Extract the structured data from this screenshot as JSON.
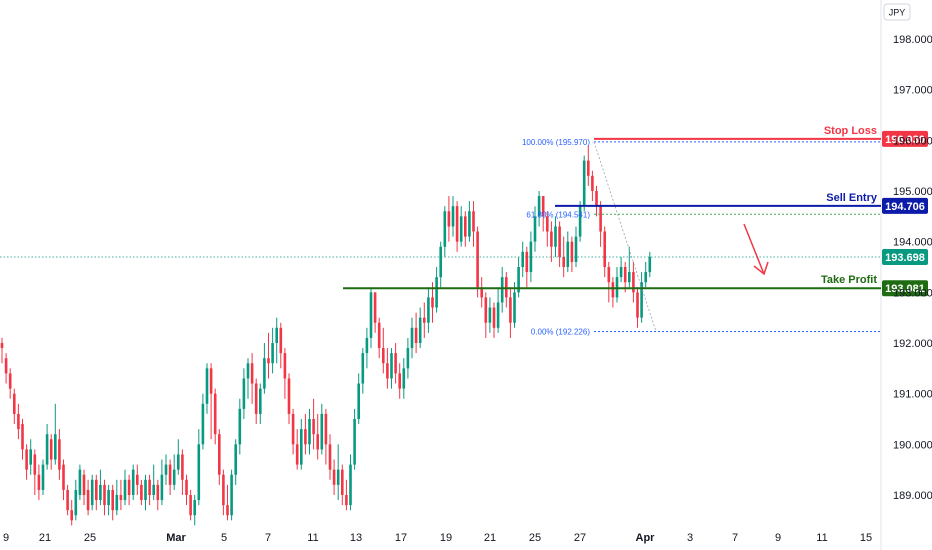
{
  "currency_label": "JPY",
  "chart_data": {
    "type": "candlestick",
    "ylim": [
      188.3,
      198.6
    ],
    "y_ticks": [
      "198.000",
      "197.000",
      "196.000",
      "195.000",
      "194.000",
      "193.000",
      "192.000",
      "191.000",
      "190.000",
      "189.000"
    ],
    "y_tick_values": [
      198,
      197,
      196,
      195,
      194,
      193,
      192,
      191,
      190,
      189
    ],
    "x_ticks": [
      {
        "label": "9",
        "bold": false
      },
      {
        "label": "21",
        "bold": false
      },
      {
        "label": "25",
        "bold": false
      },
      {
        "label": "Mar",
        "bold": true
      },
      {
        "label": "5",
        "bold": false
      },
      {
        "label": "7",
        "bold": false
      },
      {
        "label": "11",
        "bold": false
      },
      {
        "label": "13",
        "bold": false
      },
      {
        "label": "17",
        "bold": false
      },
      {
        "label": "19",
        "bold": false
      },
      {
        "label": "21",
        "bold": false
      },
      {
        "label": "25",
        "bold": false
      },
      {
        "label": "27",
        "bold": false
      },
      {
        "label": "Apr",
        "bold": true
      },
      {
        "label": "3",
        "bold": false
      },
      {
        "label": "7",
        "bold": false
      },
      {
        "label": "9",
        "bold": false
      },
      {
        "label": "11",
        "bold": false
      },
      {
        "label": "15",
        "bold": false
      }
    ],
    "candles": [
      [
        192.0,
        191.9,
        192.1,
        191.6
      ],
      [
        191.7,
        191.4,
        191.8,
        191.2
      ],
      [
        191.4,
        191.1,
        191.5,
        190.9
      ],
      [
        191.0,
        190.6,
        191.1,
        190.4
      ],
      [
        190.6,
        190.3,
        190.8,
        190.1
      ],
      [
        190.4,
        189.9,
        190.5,
        189.7
      ],
      [
        189.9,
        189.5,
        190.0,
        189.3
      ],
      [
        189.6,
        189.9,
        190.1,
        189.4
      ],
      [
        189.8,
        189.4,
        189.9,
        189.0
      ],
      [
        189.4,
        189.1,
        189.6,
        188.9
      ],
      [
        189.1,
        189.6,
        189.7,
        189.0
      ],
      [
        189.6,
        190.2,
        190.4,
        189.5
      ],
      [
        190.1,
        189.7,
        190.2,
        189.5
      ],
      [
        189.7,
        190.2,
        190.8,
        189.6
      ],
      [
        190.1,
        189.5,
        190.3,
        189.3
      ],
      [
        189.6,
        189.1,
        189.7,
        188.9
      ],
      [
        189.1,
        188.7,
        189.2,
        188.6
      ],
      [
        188.7,
        188.5,
        188.9,
        188.4
      ],
      [
        188.6,
        189.1,
        189.3,
        188.5
      ],
      [
        189.0,
        189.5,
        189.6,
        188.9
      ],
      [
        189.4,
        189.0,
        189.5,
        188.8
      ],
      [
        189.1,
        188.7,
        189.3,
        188.6
      ],
      [
        188.8,
        189.3,
        189.4,
        188.7
      ],
      [
        189.3,
        188.9,
        189.4,
        188.7
      ],
      [
        188.9,
        189.2,
        189.5,
        188.8
      ],
      [
        189.2,
        188.8,
        189.3,
        188.6
      ],
      [
        188.8,
        189.1,
        189.2,
        188.6
      ],
      [
        189.1,
        188.7,
        189.2,
        188.5
      ],
      [
        188.7,
        189.0,
        189.3,
        188.6
      ],
      [
        189.0,
        188.9,
        189.3,
        188.7
      ],
      [
        188.9,
        189.3,
        189.5,
        188.8
      ],
      [
        189.3,
        189.0,
        189.4,
        188.8
      ],
      [
        189.0,
        189.5,
        189.6,
        188.9
      ],
      [
        189.4,
        189.2,
        189.6,
        189.0
      ],
      [
        189.2,
        188.9,
        189.3,
        188.8
      ],
      [
        188.9,
        189.3,
        189.4,
        188.7
      ],
      [
        189.3,
        189.0,
        189.4,
        188.8
      ],
      [
        189.0,
        189.2,
        189.6,
        188.9
      ],
      [
        189.2,
        188.9,
        189.3,
        188.7
      ],
      [
        188.9,
        189.4,
        189.7,
        188.8
      ],
      [
        189.4,
        189.6,
        189.8,
        189.2
      ],
      [
        189.6,
        189.2,
        189.7,
        189.0
      ],
      [
        189.2,
        189.5,
        189.8,
        189.1
      ],
      [
        189.5,
        189.8,
        190.1,
        189.4
      ],
      [
        189.8,
        189.3,
        189.9,
        189.0
      ],
      [
        189.3,
        189.0,
        189.4,
        188.8
      ],
      [
        189.0,
        188.6,
        189.1,
        188.5
      ],
      [
        188.6,
        188.9,
        189.0,
        188.4
      ],
      [
        188.9,
        190.0,
        190.3,
        188.8
      ],
      [
        190.0,
        190.8,
        191.0,
        189.9
      ],
      [
        190.8,
        191.5,
        191.6,
        190.6
      ],
      [
        191.5,
        191.0,
        191.6,
        190.1
      ],
      [
        191.0,
        190.2,
        191.1,
        190.0
      ],
      [
        190.2,
        189.4,
        190.3,
        189.2
      ],
      [
        189.4,
        188.8,
        189.5,
        188.6
      ],
      [
        188.8,
        188.6,
        189.2,
        188.5
      ],
      [
        188.6,
        189.4,
        189.5,
        188.5
      ],
      [
        189.4,
        190.0,
        190.1,
        189.2
      ],
      [
        190.0,
        190.7,
        190.9,
        189.8
      ],
      [
        190.7,
        191.3,
        191.5,
        190.5
      ],
      [
        191.3,
        191.6,
        191.7,
        190.9
      ],
      [
        191.6,
        191.2,
        191.8,
        190.8
      ],
      [
        191.2,
        190.6,
        191.3,
        190.4
      ],
      [
        190.6,
        191.1,
        191.2,
        190.4
      ],
      [
        191.1,
        191.7,
        192.0,
        191.0
      ],
      [
        191.7,
        191.6,
        192.2,
        191.3
      ],
      [
        191.6,
        192.0,
        192.3,
        191.4
      ],
      [
        192.0,
        192.3,
        192.5,
        191.6
      ],
      [
        192.3,
        191.8,
        192.4,
        191.5
      ],
      [
        191.8,
        191.3,
        191.9,
        190.9
      ],
      [
        191.3,
        190.6,
        191.4,
        190.4
      ],
      [
        190.6,
        190.0,
        190.7,
        189.8
      ],
      [
        190.0,
        189.6,
        190.3,
        189.5
      ],
      [
        189.6,
        190.3,
        190.5,
        189.5
      ],
      [
        190.3,
        190.0,
        190.6,
        189.8
      ],
      [
        190.0,
        190.5,
        190.7,
        189.8
      ],
      [
        190.5,
        190.2,
        190.9,
        189.9
      ],
      [
        190.2,
        189.9,
        190.6,
        189.7
      ],
      [
        189.9,
        190.6,
        190.8,
        189.8
      ],
      [
        190.6,
        190.0,
        190.7,
        189.6
      ],
      [
        190.0,
        189.5,
        190.2,
        189.3
      ],
      [
        189.5,
        189.2,
        189.7,
        189.0
      ],
      [
        189.2,
        189.5,
        190.0,
        188.9
      ],
      [
        189.5,
        189.0,
        189.6,
        188.8
      ],
      [
        189.0,
        188.8,
        189.3,
        188.7
      ],
      [
        188.8,
        189.6,
        189.8,
        188.7
      ],
      [
        189.6,
        190.5,
        190.7,
        189.5
      ],
      [
        190.5,
        191.2,
        191.4,
        190.4
      ],
      [
        191.2,
        191.8,
        191.9,
        191.0
      ],
      [
        191.8,
        192.1,
        192.3,
        191.5
      ],
      [
        192.1,
        193.0,
        193.1,
        191.9
      ],
      [
        193.0,
        192.4,
        193.0,
        192.2
      ],
      [
        192.4,
        191.9,
        192.5,
        191.7
      ],
      [
        191.9,
        191.6,
        192.3,
        191.4
      ],
      [
        191.6,
        191.3,
        191.9,
        191.1
      ],
      [
        191.3,
        191.8,
        191.9,
        191.1
      ],
      [
        191.8,
        191.4,
        192.0,
        191.2
      ],
      [
        191.4,
        191.1,
        191.6,
        190.9
      ],
      [
        191.1,
        191.5,
        191.7,
        190.9
      ],
      [
        191.5,
        191.9,
        192.1,
        191.3
      ],
      [
        191.9,
        192.3,
        192.5,
        191.7
      ],
      [
        192.3,
        192.0,
        192.6,
        191.8
      ],
      [
        192.0,
        192.5,
        192.7,
        191.9
      ],
      [
        192.5,
        192.4,
        192.8,
        192.1
      ],
      [
        192.4,
        192.9,
        193.1,
        192.2
      ],
      [
        192.9,
        192.7,
        193.2,
        192.4
      ],
      [
        192.7,
        193.3,
        193.5,
        192.6
      ],
      [
        193.3,
        193.9,
        194.0,
        193.1
      ],
      [
        193.9,
        194.6,
        194.7,
        193.7
      ],
      [
        194.6,
        194.3,
        194.9,
        194.0
      ],
      [
        194.3,
        194.7,
        194.9,
        194.1
      ],
      [
        194.7,
        194.0,
        194.8,
        193.8
      ],
      [
        194.0,
        194.5,
        194.7,
        193.9
      ],
      [
        194.5,
        194.1,
        194.6,
        193.9
      ],
      [
        194.1,
        194.6,
        194.8,
        194.0
      ],
      [
        194.6,
        194.2,
        194.8,
        193.9
      ],
      [
        194.2,
        193.1,
        194.3,
        192.9
      ],
      [
        193.1,
        192.9,
        193.3,
        192.7
      ],
      [
        192.9,
        192.4,
        193.0,
        192.1
      ],
      [
        192.4,
        192.7,
        192.9,
        192.2
      ],
      [
        192.7,
        192.3,
        192.8,
        192.1
      ],
      [
        192.3,
        192.8,
        193.1,
        192.2
      ],
      [
        192.8,
        193.3,
        193.5,
        192.6
      ],
      [
        193.3,
        192.9,
        193.4,
        192.7
      ],
      [
        192.9,
        192.4,
        193.1,
        192.1
      ],
      [
        192.4,
        193.0,
        193.2,
        192.3
      ],
      [
        193.0,
        193.5,
        193.7,
        192.9
      ],
      [
        193.5,
        193.8,
        194.0,
        193.3
      ],
      [
        193.8,
        193.4,
        193.9,
        193.1
      ],
      [
        193.4,
        194.0,
        194.2,
        193.2
      ],
      [
        194.0,
        194.5,
        194.7,
        193.8
      ],
      [
        194.5,
        194.9,
        195.0,
        194.3
      ],
      [
        194.9,
        194.5,
        194.9,
        194.2
      ],
      [
        194.5,
        194.2,
        194.6,
        193.9
      ],
      [
        194.2,
        193.9,
        194.4,
        193.6
      ],
      [
        193.9,
        194.3,
        194.5,
        193.7
      ],
      [
        194.3,
        193.7,
        194.4,
        193.5
      ],
      [
        193.7,
        193.5,
        194.1,
        193.3
      ],
      [
        193.5,
        194.0,
        194.2,
        193.4
      ],
      [
        194.0,
        193.6,
        194.1,
        193.4
      ],
      [
        193.6,
        194.1,
        194.3,
        193.5
      ],
      [
        194.1,
        194.7,
        194.8,
        194.0
      ],
      [
        194.7,
        195.6,
        195.7,
        194.6
      ],
      [
        195.6,
        195.3,
        195.9,
        195.1
      ],
      [
        195.3,
        195.0,
        195.4,
        194.8
      ],
      [
        195.0,
        194.7,
        195.1,
        194.5
      ],
      [
        194.7,
        194.2,
        194.8,
        193.9
      ],
      [
        194.2,
        193.5,
        194.3,
        193.3
      ],
      [
        193.5,
        193.2,
        193.6,
        192.8
      ],
      [
        193.2,
        192.9,
        193.3,
        192.7
      ],
      [
        192.9,
        193.3,
        193.5,
        192.8
      ],
      [
        193.3,
        193.5,
        193.7,
        193.2
      ],
      [
        193.5,
        193.2,
        193.6,
        193.0
      ],
      [
        193.2,
        193.4,
        193.9,
        193.1
      ],
      [
        193.4,
        193.0,
        193.6,
        192.8
      ],
      [
        193.0,
        192.5,
        193.1,
        192.3
      ],
      [
        192.5,
        193.2,
        193.4,
        192.4
      ],
      [
        193.2,
        193.4,
        193.6,
        193.1
      ],
      [
        193.4,
        193.7,
        193.8,
        193.3
      ]
    ],
    "levels": [
      {
        "label": "Stop Loss",
        "value": "196.030",
        "price": 196.03,
        "color": "#f23645"
      },
      {
        "label": "Sell Entry",
        "value": "194.706",
        "price": 194.706,
        "color": "#0d1ca8"
      },
      {
        "label": "Take Profit",
        "value": "193.081",
        "price": 193.081,
        "color": "#1f6b12"
      }
    ],
    "current_price": {
      "value": "193.698",
      "price": 193.698,
      "color": "#089981"
    },
    "fib_labels": [
      {
        "text": "100.00% (195.970)",
        "price": 195.97
      },
      {
        "text": "61.80% (194.541)",
        "price": 194.541
      },
      {
        "text": "0.00% (192.226)",
        "price": 192.226
      }
    ],
    "colors": {
      "up": "#089981",
      "down": "#f23645"
    }
  }
}
